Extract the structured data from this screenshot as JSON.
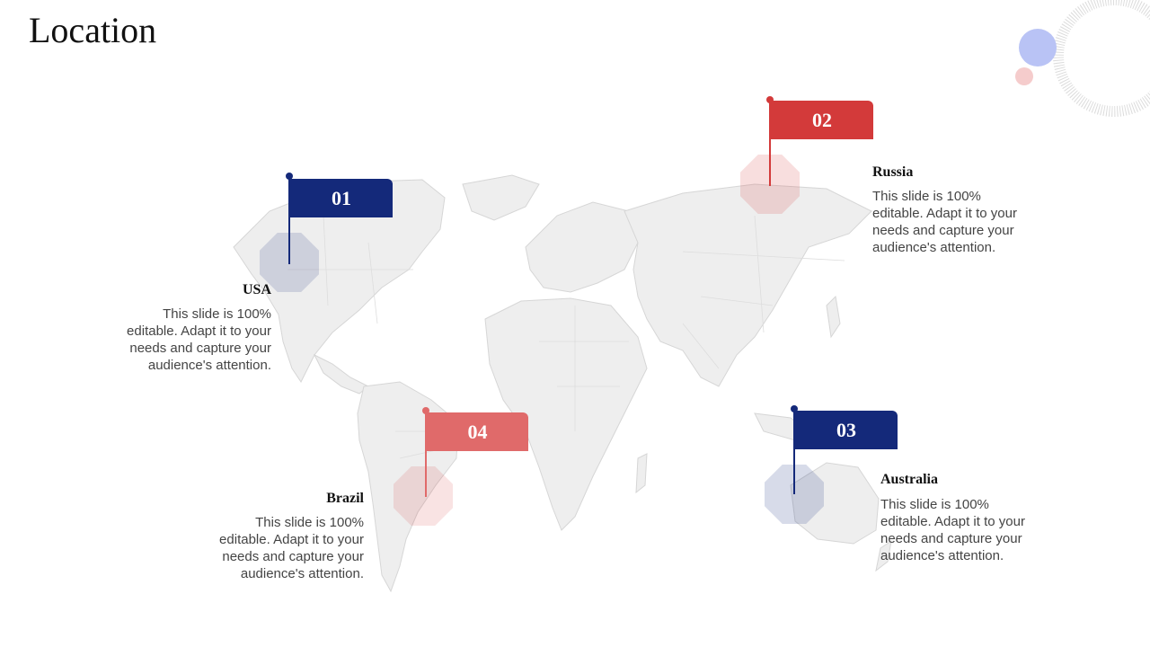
{
  "title": "Location",
  "colors": {
    "navy": "#14297a",
    "red": "#d33a3a",
    "red_light": "#e06a6a",
    "map_fill": "#eeeeee",
    "map_stroke": "#d6d6d6"
  },
  "locations": [
    {
      "number": "01",
      "name": "USA",
      "description": "This slide is 100% editable. Adapt it to your needs and capture your audience's attention."
    },
    {
      "number": "02",
      "name": "Russia",
      "description": "This slide is 100% editable. Adapt it to your needs and capture your audience's attention."
    },
    {
      "number": "03",
      "name": "Australia",
      "description": "This slide is 100% editable. Adapt it to your needs and capture your audience's attention."
    },
    {
      "number": "04",
      "name": "Brazil",
      "description": "This slide is 100% editable. Adapt it to your needs and capture your audience's attention."
    }
  ]
}
